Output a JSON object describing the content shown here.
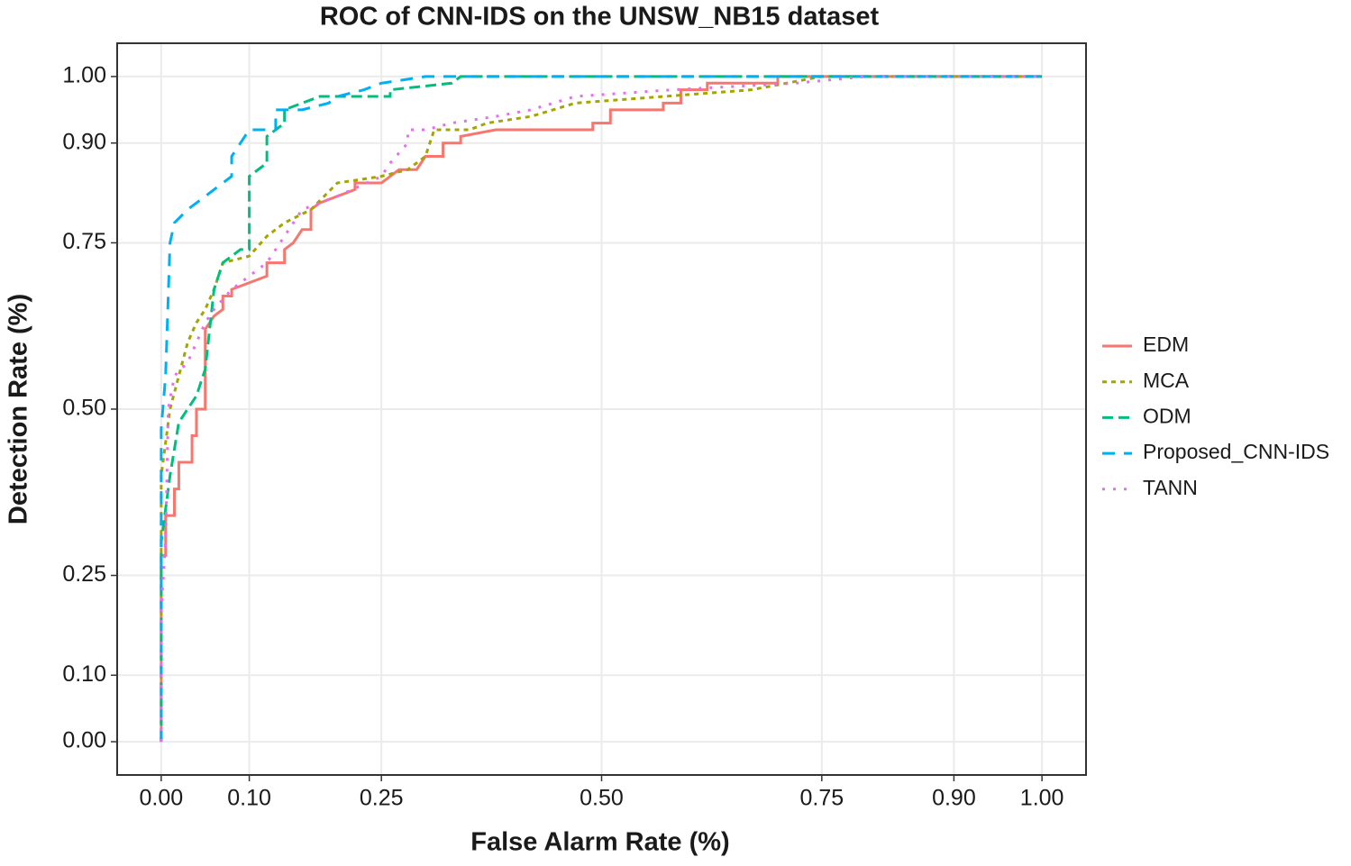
{
  "chart_data": {
    "type": "line",
    "title": "ROC of CNN-IDS on the UNSW_NB15 dataset",
    "x_label": "False Alarm Rate (%)",
    "y_label": "Detection Rate (%)",
    "xlim": [
      -0.05,
      1.05
    ],
    "ylim": [
      -0.05,
      1.05
    ],
    "xticks": [
      {
        "value": 0,
        "label": "0.00"
      },
      {
        "value": 0.1,
        "label": "0.10"
      },
      {
        "value": 0.25,
        "label": "0.25"
      },
      {
        "value": 0.5,
        "label": "0.50"
      },
      {
        "value": 0.75,
        "label": "0.75"
      },
      {
        "value": 0.9,
        "label": "0.90"
      },
      {
        "value": 1,
        "label": "1.00"
      }
    ],
    "yticks": [
      {
        "value": 0,
        "label": "0.00"
      },
      {
        "value": 0.1,
        "label": "0.10"
      },
      {
        "value": 0.25,
        "label": "0.25"
      },
      {
        "value": 0.5,
        "label": "0.50"
      },
      {
        "value": 0.75,
        "label": "0.75"
      },
      {
        "value": 0.9,
        "label": "0.90"
      },
      {
        "value": 1,
        "label": "1.00"
      }
    ],
    "grid": true,
    "legend": "right",
    "series": [
      {
        "name": "EDM",
        "color": "#F8766D",
        "linestyle": "solid",
        "x": [
          0,
          0,
          0.005,
          0.005,
          0.015,
          0.015,
          0.02,
          0.02,
          0.035,
          0.035,
          0.04,
          0.04,
          0.05,
          0.05,
          0.06,
          0.07,
          0.07,
          0.08,
          0.08,
          0.1,
          0.12,
          0.12,
          0.14,
          0.14,
          0.15,
          0.16,
          0.17,
          0.17,
          0.18,
          0.2,
          0.22,
          0.22,
          0.25,
          0.27,
          0.29,
          0.3,
          0.32,
          0.32,
          0.34,
          0.34,
          0.38,
          0.49,
          0.49,
          0.51,
          0.51,
          0.57,
          0.57,
          0.59,
          0.59,
          0.62,
          0.62,
          0.7,
          0.7,
          1
        ],
        "values": [
          0,
          0.28,
          0.28,
          0.34,
          0.34,
          0.38,
          0.38,
          0.42,
          0.42,
          0.46,
          0.46,
          0.5,
          0.5,
          0.62,
          0.64,
          0.65,
          0.67,
          0.67,
          0.68,
          0.69,
          0.7,
          0.72,
          0.72,
          0.74,
          0.75,
          0.77,
          0.77,
          0.8,
          0.81,
          0.82,
          0.83,
          0.84,
          0.84,
          0.86,
          0.86,
          0.88,
          0.88,
          0.9,
          0.9,
          0.91,
          0.92,
          0.92,
          0.93,
          0.93,
          0.95,
          0.95,
          0.96,
          0.96,
          0.98,
          0.98,
          0.99,
          0.99,
          1,
          1
        ]
      },
      {
        "name": "MCA",
        "color": "#A3A500",
        "linestyle": "dotted",
        "x": [
          0,
          0,
          0.005,
          0.01,
          0.02,
          0.03,
          0.04,
          0.05,
          0.06,
          0.07,
          0.1,
          0.12,
          0.14,
          0.17,
          0.2,
          0.25,
          0.28,
          0.3,
          0.31,
          0.35,
          0.37,
          0.42,
          0.47,
          0.57,
          0.67,
          0.75,
          1
        ],
        "values": [
          0,
          0.4,
          0.45,
          0.5,
          0.55,
          0.6,
          0.63,
          0.65,
          0.68,
          0.72,
          0.73,
          0.76,
          0.78,
          0.8,
          0.84,
          0.85,
          0.86,
          0.88,
          0.92,
          0.92,
          0.93,
          0.94,
          0.96,
          0.97,
          0.98,
          1,
          1
        ]
      },
      {
        "name": "ODM",
        "color": "#00BF7D",
        "linestyle": "dashed",
        "x": [
          0,
          0,
          0.005,
          0.01,
          0.02,
          0.03,
          0.04,
          0.05,
          0.06,
          0.07,
          0.09,
          0.1,
          0.1,
          0.11,
          0.12,
          0.12,
          0.14,
          0.14,
          0.16,
          0.18,
          0.26,
          0.26,
          0.33,
          0.34,
          1
        ],
        "values": [
          0,
          0.3,
          0.35,
          0.4,
          0.48,
          0.5,
          0.52,
          0.56,
          0.68,
          0.72,
          0.74,
          0.74,
          0.85,
          0.86,
          0.87,
          0.91,
          0.93,
          0.95,
          0.96,
          0.97,
          0.97,
          0.98,
          0.99,
          1,
          1
        ]
      },
      {
        "name": "Proposed_CNN-IDS",
        "color": "#00B0F6",
        "linestyle": "longdash",
        "x": [
          0,
          0,
          0.005,
          0.01,
          0.015,
          0.03,
          0.05,
          0.08,
          0.08,
          0.09,
          0.1,
          0.13,
          0.13,
          0.16,
          0.19,
          0.2,
          0.23,
          0.25,
          0.3,
          1
        ],
        "values": [
          0,
          0.47,
          0.55,
          0.75,
          0.78,
          0.8,
          0.82,
          0.85,
          0.88,
          0.9,
          0.92,
          0.92,
          0.95,
          0.95,
          0.96,
          0.97,
          0.98,
          0.99,
          1,
          1
        ]
      },
      {
        "name": "TANN",
        "color": "#E76BF3",
        "linestyle": "dotdash",
        "x": [
          0,
          0,
          0.005,
          0.008,
          0.015,
          0.03,
          0.04,
          0.05,
          0.06,
          0.08,
          0.12,
          0.14,
          0.16,
          0.2,
          0.25,
          0.26,
          0.28,
          0.28,
          0.3,
          0.33,
          0.38,
          0.42,
          0.47,
          0.58,
          0.72,
          0.8,
          1
        ],
        "values": [
          0,
          0.2,
          0.3,
          0.5,
          0.55,
          0.57,
          0.6,
          0.63,
          0.65,
          0.68,
          0.72,
          0.76,
          0.8,
          0.82,
          0.85,
          0.87,
          0.9,
          0.92,
          0.92,
          0.93,
          0.94,
          0.95,
          0.97,
          0.98,
          0.99,
          1,
          1
        ]
      }
    ]
  }
}
